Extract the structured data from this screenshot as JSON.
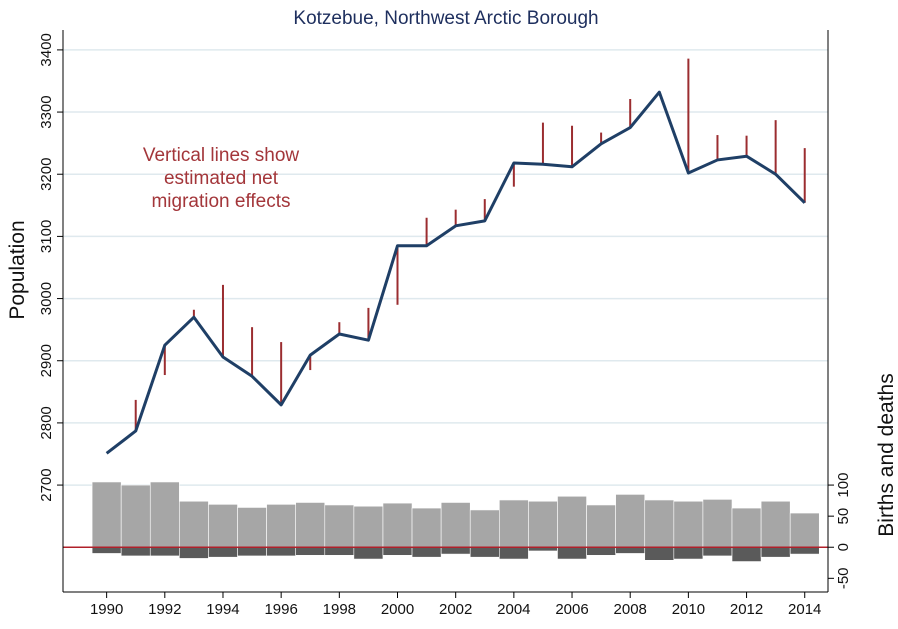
{
  "chart_data": {
    "type": "line",
    "title": "Kotzebue, Northwest Arctic Borough",
    "ylabel": "Population",
    "y2label": "Births and deaths",
    "annotation": [
      "Vertical lines show",
      "estimated net",
      "migration effects"
    ],
    "x": [
      1990,
      1991,
      1992,
      1993,
      1994,
      1995,
      1996,
      1997,
      1998,
      1999,
      2000,
      2001,
      2002,
      2003,
      2004,
      2005,
      2006,
      2007,
      2008,
      2009,
      2010,
      2011,
      2012,
      2013,
      2014
    ],
    "xlim": [
      1988.5,
      2014.8
    ],
    "xticks": [
      1990,
      1992,
      1994,
      1996,
      1998,
      2000,
      2002,
      2004,
      2006,
      2008,
      2010,
      2012,
      2014
    ],
    "ylim": [
      2528,
      3432
    ],
    "yticks": [
      2700,
      2800,
      2900,
      3000,
      3100,
      3200,
      3300,
      3400
    ],
    "y2lim": [
      -72,
      832
    ],
    "y2ticks": [
      -50,
      0,
      50,
      100
    ],
    "grid": true,
    "series": [
      {
        "name": "population",
        "kind": "line",
        "color": "#1f3f66",
        "values": [
          2751,
          2787,
          2925,
          2970,
          2906,
          2875,
          2829,
          2909,
          2943,
          2933,
          3085,
          3085,
          3117,
          3125,
          3218,
          3216,
          3212,
          3249,
          3275,
          3332,
          3202,
          3223,
          3229,
          3200,
          3154
        ]
      },
      {
        "name": "expected",
        "kind": "segments",
        "color": "#9b2d30",
        "values": [
          null,
          2837,
          2877,
          2982,
          3022,
          2954,
          2930,
          2885,
          2962,
          2985,
          2990,
          3130,
          3143,
          3160,
          3180,
          3283,
          3278,
          3267,
          3321,
          null,
          3386,
          3263,
          3262,
          3287,
          3242
        ]
      },
      {
        "name": "births",
        "kind": "bar",
        "axis": "y2",
        "color": "#a6a6a6",
        "values": [
          105,
          100,
          105,
          74,
          69,
          64,
          69,
          72,
          68,
          66,
          71,
          63,
          72,
          60,
          76,
          74,
          82,
          68,
          85,
          76,
          74,
          77,
          63,
          74,
          55
        ]
      },
      {
        "name": "deaths",
        "kind": "bar",
        "axis": "y2",
        "color": "#5a5a5a",
        "values": [
          -10,
          -14,
          -14,
          -18,
          -16,
          -14,
          -14,
          -13,
          -13,
          -19,
          -13,
          -16,
          -11,
          -16,
          -19,
          -6,
          -19,
          -13,
          -10,
          -21,
          -19,
          -14,
          -23,
          -16,
          -11
        ]
      }
    ],
    "zero_line_color": "#b0202a"
  }
}
